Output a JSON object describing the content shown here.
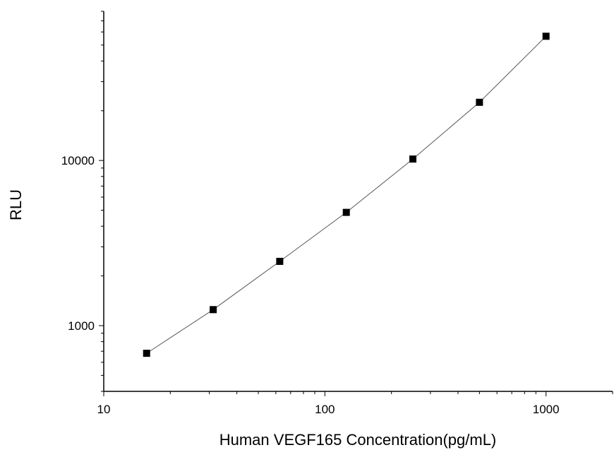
{
  "chart_data": {
    "type": "scatter",
    "title": "",
    "xlabel": "Human VEGF165 Concentration(pg/mL)",
    "ylabel": "RLU",
    "x_scale": "log",
    "y_scale": "log",
    "xlim": [
      10,
      2000
    ],
    "ylim": [
      400,
      80000
    ],
    "x_ticks": [
      {
        "value": 10,
        "label": "10"
      },
      {
        "value": 100,
        "label": "100"
      },
      {
        "value": 1000,
        "label": "1000"
      }
    ],
    "y_ticks": [
      {
        "value": 1000,
        "label": "1000"
      },
      {
        "value": 10000,
        "label": "10000"
      }
    ],
    "grid": false,
    "series": [
      {
        "marker": "square",
        "color": "#000000",
        "line_color": "#555555",
        "points": [
          {
            "x": 15.625,
            "y": 680
          },
          {
            "x": 31.25,
            "y": 1250
          },
          {
            "x": 62.5,
            "y": 2450
          },
          {
            "x": 125,
            "y": 4850
          },
          {
            "x": 250,
            "y": 10200
          },
          {
            "x": 500,
            "y": 22500
          },
          {
            "x": 1000,
            "y": 56500
          }
        ]
      }
    ]
  }
}
